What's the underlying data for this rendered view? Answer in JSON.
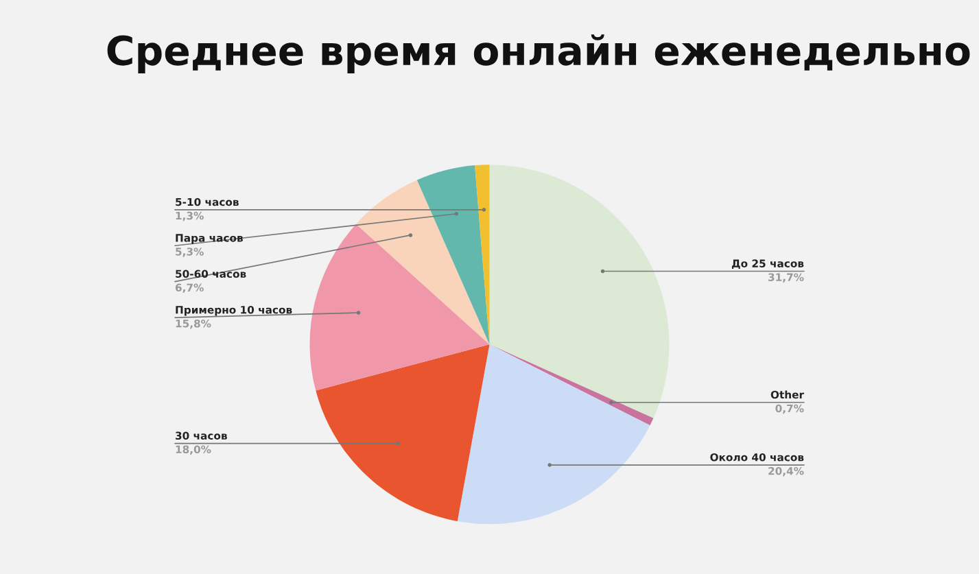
{
  "chart_data": {
    "type": "pie",
    "title": "Среднее время онлайн еженедельно",
    "categories": [
      "До 25 часов",
      "Other",
      "Около 40 часов",
      "30 часов",
      "Примерно 10 часов",
      "50-60 часов",
      "Пара часов",
      "5-10 часов"
    ],
    "values": [
      31.7,
      0.7,
      20.4,
      18.0,
      15.8,
      6.7,
      5.3,
      1.3
    ],
    "value_labels": [
      "31,7%",
      "0,7%",
      "20,4%",
      "18,0%",
      "15,8%",
      "6,7%",
      "5,3%",
      "1,3%"
    ],
    "colors": [
      "#dce9d5",
      "#c9749f",
      "#ccdcf6",
      "#e8552e",
      "#f097aa",
      "#f9d4bb",
      "#62b8ad",
      "#f0c030"
    ],
    "legend": false
  }
}
